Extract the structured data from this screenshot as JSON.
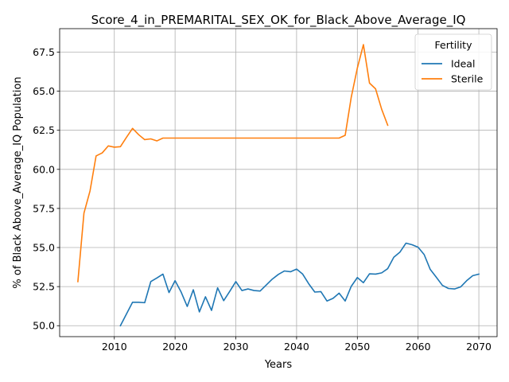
{
  "chart_data": {
    "type": "line",
    "title": "Score_4_in_PREMARITAL_SEX_OK_for_Black_Above_Average_IQ",
    "xlabel": "Years",
    "ylabel": "% of Black Above_Average_IQ Population",
    "xlim": [
      2001,
      2073
    ],
    "ylim": [
      49.3,
      69.0
    ],
    "xticks": [
      2010,
      2020,
      2030,
      2040,
      2050,
      2060,
      2070
    ],
    "yticks": [
      50.0,
      52.5,
      55.0,
      57.5,
      60.0,
      62.5,
      65.0,
      67.5
    ],
    "ytick_labels": [
      "50.0",
      "52.5",
      "55.0",
      "57.5",
      "60.0",
      "62.5",
      "65.0",
      "67.5"
    ],
    "grid": true,
    "legend": {
      "title": "Fertility",
      "placement": "top-right"
    },
    "series": [
      {
        "name": "Ideal",
        "color": "#1f77b4",
        "x": [
          2011,
          2012,
          2013,
          2014,
          2015,
          2016,
          2017,
          2018,
          2019,
          2020,
          2021,
          2022,
          2023,
          2024,
          2025,
          2026,
          2027,
          2028,
          2029,
          2030,
          2031,
          2032,
          2033,
          2034,
          2035,
          2036,
          2037,
          2038,
          2039,
          2040,
          2041,
          2042,
          2043,
          2044,
          2045,
          2046,
          2047,
          2048,
          2049,
          2050,
          2051,
          2052,
          2053,
          2054,
          2055,
          2056,
          2057,
          2058,
          2059,
          2060,
          2061,
          2062,
          2063,
          2064,
          2065,
          2066,
          2067,
          2068,
          2069,
          2070
        ],
        "y": [
          50.0,
          50.75,
          51.5,
          51.5,
          51.47,
          52.82,
          53.05,
          53.3,
          52.12,
          52.88,
          52.15,
          51.23,
          52.3,
          50.88,
          51.85,
          50.98,
          52.42,
          51.6,
          52.2,
          52.82,
          52.25,
          52.35,
          52.25,
          52.22,
          52.6,
          52.98,
          53.28,
          53.5,
          53.45,
          53.62,
          53.3,
          52.68,
          52.15,
          52.18,
          51.58,
          51.75,
          52.08,
          51.58,
          52.52,
          53.08,
          52.75,
          53.32,
          53.3,
          53.38,
          53.65,
          54.38,
          54.7,
          55.28,
          55.18,
          55.02,
          54.55,
          53.6,
          53.1,
          52.58,
          52.38,
          52.35,
          52.48,
          52.88,
          53.2,
          53.3
        ]
      },
      {
        "name": "Sterile",
        "color": "#ff7f0e",
        "x": [
          2004,
          2005,
          2006,
          2007,
          2008,
          2009,
          2010,
          2011,
          2012,
          2013,
          2014,
          2015,
          2016,
          2017,
          2018,
          2019,
          2020,
          2021,
          2022,
          2023,
          2024,
          2025,
          2026,
          2027,
          2028,
          2029,
          2030,
          2031,
          2032,
          2033,
          2034,
          2035,
          2036,
          2037,
          2038,
          2039,
          2040,
          2041,
          2042,
          2043,
          2044,
          2045,
          2046,
          2047,
          2048,
          2049,
          2050,
          2051,
          2052,
          2053,
          2054,
          2055
        ],
        "y": [
          52.82,
          57.2,
          58.62,
          60.86,
          61.05,
          61.5,
          61.42,
          61.45,
          62.05,
          62.62,
          62.22,
          61.9,
          61.95,
          61.82,
          62.0,
          62.0,
          62.0,
          62.0,
          62.0,
          62.0,
          62.0,
          62.0,
          62.0,
          62.0,
          62.0,
          62.0,
          62.0,
          62.0,
          62.0,
          62.0,
          62.0,
          62.0,
          62.0,
          62.0,
          62.0,
          62.0,
          62.0,
          62.0,
          62.0,
          62.0,
          62.0,
          62.0,
          62.0,
          62.0,
          62.18,
          64.62,
          66.48,
          67.98,
          65.52,
          65.15,
          63.85,
          62.82
        ]
      }
    ]
  }
}
